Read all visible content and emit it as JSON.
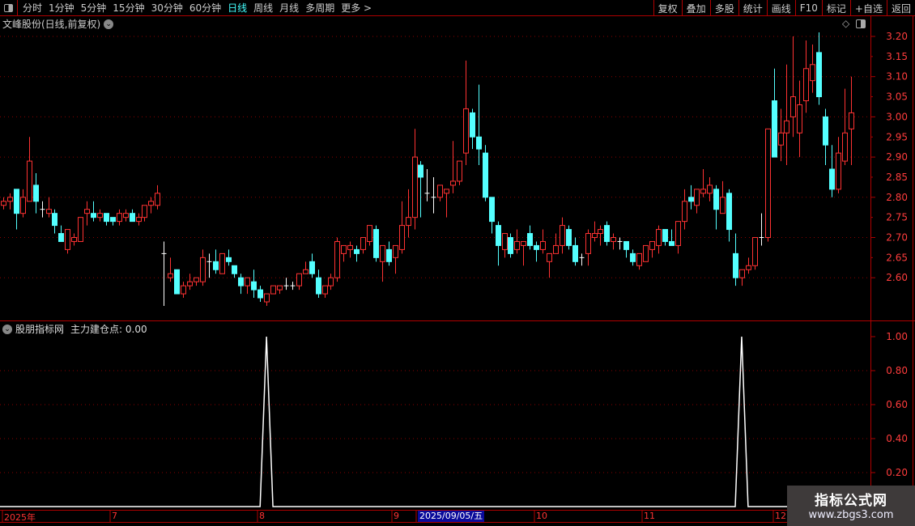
{
  "toolbar": {
    "periods": [
      "分时",
      "1分钟",
      "5分钟",
      "15分钟",
      "30分钟",
      "60分钟",
      "日线",
      "周线",
      "月线",
      "多周期",
      "更多 >"
    ],
    "active_period": "日线",
    "right": [
      "复权",
      "叠加",
      "多股",
      "统计",
      "画线",
      "F10",
      "标记",
      "+自选",
      "返回"
    ]
  },
  "chart_title": "文峰股份(日线,前复权)",
  "indicator": {
    "name": "股朋指标网",
    "label": "主力建仓点: 0.00"
  },
  "price_axis": {
    "ticks": [
      "3.20",
      "3.15",
      "3.10",
      "3.05",
      "3.00",
      "2.95",
      "2.90",
      "2.85",
      "2.80",
      "2.75",
      "2.70",
      "2.65",
      "2.60"
    ],
    "min": 2.6,
    "max": 3.2
  },
  "indicator_axis": {
    "ticks": [
      "1.00",
      "0.80",
      "0.60",
      "0.40",
      "0.20"
    ],
    "min": 0,
    "max": 1
  },
  "date_axis": {
    "labels": [
      "2025年",
      "7",
      "8",
      "9",
      "10",
      "11",
      "12"
    ],
    "highlight": "2025/09/05/五"
  },
  "watermark": {
    "title": "指标公式网",
    "url": "www.zbgs3.com"
  },
  "colors": {
    "up": "#ff3232",
    "down": "#54ffff",
    "flat": "#ffffff",
    "axis": "#b00000",
    "axis_text": "#ff3c3c",
    "grid": "#8b0000"
  },
  "chart_data": {
    "type": "candlestick",
    "ohlc": [
      [
        2.78,
        2.8,
        2.77,
        2.79
      ],
      [
        2.79,
        2.81,
        2.77,
        2.8
      ],
      [
        2.82,
        2.82,
        2.72,
        2.76
      ],
      [
        2.76,
        2.82,
        2.75,
        2.8
      ],
      [
        2.79,
        2.95,
        2.79,
        2.89
      ],
      [
        2.83,
        2.86,
        2.76,
        2.79
      ],
      [
        2.77,
        2.79,
        2.75,
        2.77
      ],
      [
        2.76,
        2.8,
        2.75,
        2.77
      ],
      [
        2.76,
        2.77,
        2.71,
        2.73
      ],
      [
        2.71,
        2.73,
        2.69,
        2.69
      ],
      [
        2.67,
        2.72,
        2.66,
        2.72
      ],
      [
        2.69,
        2.71,
        2.68,
        2.7
      ],
      [
        2.69,
        2.75,
        2.69,
        2.75
      ],
      [
        2.76,
        2.79,
        2.73,
        2.77
      ],
      [
        2.76,
        2.79,
        2.74,
        2.75
      ],
      [
        2.75,
        2.77,
        2.74,
        2.76
      ],
      [
        2.76,
        2.76,
        2.73,
        2.74
      ],
      [
        2.75,
        2.75,
        2.73,
        2.74
      ],
      [
        2.74,
        2.77,
        2.73,
        2.76
      ],
      [
        2.75,
        2.77,
        2.74,
        2.76
      ],
      [
        2.76,
        2.77,
        2.74,
        2.74
      ],
      [
        2.74,
        2.76,
        2.73,
        2.75
      ],
      [
        2.75,
        2.78,
        2.74,
        2.78
      ],
      [
        2.78,
        2.8,
        2.76,
        2.79
      ],
      [
        2.78,
        2.83,
        2.77,
        2.81
      ],
      [
        2.66,
        2.69,
        2.53,
        2.66
      ],
      [
        2.6,
        2.65,
        2.59,
        2.61
      ],
      [
        2.62,
        2.62,
        2.56,
        2.56
      ],
      [
        2.56,
        2.59,
        2.55,
        2.58
      ],
      [
        2.58,
        2.61,
        2.57,
        2.59
      ],
      [
        2.59,
        2.6,
        2.58,
        2.6
      ],
      [
        2.59,
        2.67,
        2.58,
        2.65
      ],
      [
        2.64,
        2.66,
        2.6,
        2.64
      ],
      [
        2.64,
        2.67,
        2.61,
        2.62
      ],
      [
        2.61,
        2.66,
        2.61,
        2.66
      ],
      [
        2.65,
        2.67,
        2.63,
        2.64
      ],
      [
        2.63,
        2.63,
        2.6,
        2.61
      ],
      [
        2.6,
        2.61,
        2.56,
        2.58
      ],
      [
        2.58,
        2.6,
        2.56,
        2.6
      ],
      [
        2.59,
        2.62,
        2.55,
        2.57
      ],
      [
        2.57,
        2.58,
        2.54,
        2.55
      ],
      [
        2.54,
        2.56,
        2.53,
        2.56
      ],
      [
        2.56,
        2.58,
        2.56,
        2.58
      ],
      [
        2.57,
        2.58,
        2.56,
        2.58
      ],
      [
        2.58,
        2.6,
        2.57,
        2.58
      ],
      [
        2.58,
        2.59,
        2.57,
        2.58
      ],
      [
        2.58,
        2.61,
        2.57,
        2.61
      ],
      [
        2.61,
        2.64,
        2.61,
        2.62
      ],
      [
        2.64,
        2.66,
        2.6,
        2.61
      ],
      [
        2.6,
        2.62,
        2.55,
        2.56
      ],
      [
        2.56,
        2.58,
        2.55,
        2.58
      ],
      [
        2.58,
        2.61,
        2.57,
        2.6
      ],
      [
        2.6,
        2.7,
        2.59,
        2.69
      ],
      [
        2.66,
        2.68,
        2.64,
        2.68
      ],
      [
        2.67,
        2.69,
        2.65,
        2.68
      ],
      [
        2.67,
        2.68,
        2.64,
        2.66
      ],
      [
        2.67,
        2.7,
        2.66,
        2.7
      ],
      [
        2.69,
        2.73,
        2.68,
        2.73
      ],
      [
        2.72,
        2.73,
        2.64,
        2.65
      ],
      [
        2.64,
        2.68,
        2.59,
        2.68
      ],
      [
        2.67,
        2.69,
        2.63,
        2.64
      ],
      [
        2.65,
        2.68,
        2.61,
        2.68
      ],
      [
        2.67,
        2.79,
        2.66,
        2.73
      ],
      [
        2.73,
        2.82,
        2.7,
        2.75
      ],
      [
        2.75,
        2.97,
        2.72,
        2.9
      ],
      [
        2.88,
        2.89,
        2.75,
        2.85
      ],
      [
        2.81,
        2.87,
        2.79,
        2.81
      ],
      [
        2.8,
        2.85,
        2.76,
        2.8
      ],
      [
        2.8,
        2.83,
        2.79,
        2.83
      ],
      [
        2.81,
        2.82,
        2.75,
        2.82
      ],
      [
        2.83,
        2.94,
        2.81,
        2.84
      ],
      [
        2.84,
        2.89,
        2.83,
        2.89
      ],
      [
        2.91,
        3.14,
        2.88,
        3.02
      ],
      [
        3.01,
        3.02,
        2.92,
        2.95
      ],
      [
        2.95,
        3.08,
        2.88,
        2.92
      ],
      [
        2.91,
        2.93,
        2.79,
        2.8
      ],
      [
        2.8,
        2.8,
        2.71,
        2.74
      ],
      [
        2.73,
        2.74,
        2.63,
        2.68
      ],
      [
        2.67,
        2.71,
        2.65,
        2.71
      ],
      [
        2.7,
        2.71,
        2.65,
        2.66
      ],
      [
        2.67,
        2.72,
        2.66,
        2.69
      ],
      [
        2.68,
        2.69,
        2.63,
        2.69
      ],
      [
        2.71,
        2.73,
        2.67,
        2.68
      ],
      [
        2.68,
        2.69,
        2.64,
        2.67
      ],
      [
        2.67,
        2.72,
        2.66,
        2.69
      ],
      [
        2.64,
        2.66,
        2.6,
        2.66
      ],
      [
        2.66,
        2.71,
        2.66,
        2.68
      ],
      [
        2.68,
        2.75,
        2.66,
        2.73
      ],
      [
        2.72,
        2.73,
        2.67,
        2.68
      ],
      [
        2.68,
        2.7,
        2.63,
        2.64
      ],
      [
        2.65,
        2.66,
        2.63,
        2.65
      ],
      [
        2.66,
        2.72,
        2.63,
        2.71
      ],
      [
        2.7,
        2.74,
        2.69,
        2.71
      ],
      [
        2.71,
        2.73,
        2.68,
        2.72
      ],
      [
        2.73,
        2.74,
        2.68,
        2.69
      ],
      [
        2.69,
        2.71,
        2.67,
        2.7
      ],
      [
        2.69,
        2.7,
        2.67,
        2.69
      ],
      [
        2.69,
        2.69,
        2.65,
        2.67
      ],
      [
        2.66,
        2.67,
        2.63,
        2.64
      ],
      [
        2.63,
        2.66,
        2.62,
        2.66
      ],
      [
        2.64,
        2.68,
        2.64,
        2.68
      ],
      [
        2.67,
        2.69,
        2.65,
        2.69
      ],
      [
        2.68,
        2.73,
        2.66,
        2.72
      ],
      [
        2.72,
        2.72,
        2.68,
        2.69
      ],
      [
        2.69,
        2.72,
        2.68,
        2.68
      ],
      [
        2.68,
        2.74,
        2.66,
        2.74
      ],
      [
        2.74,
        2.82,
        2.72,
        2.79
      ],
      [
        2.8,
        2.83,
        2.77,
        2.79
      ],
      [
        2.78,
        2.82,
        2.76,
        2.82
      ],
      [
        2.81,
        2.87,
        2.8,
        2.82
      ],
      [
        2.81,
        2.85,
        2.79,
        2.83
      ],
      [
        2.82,
        2.83,
        2.72,
        2.77
      ],
      [
        2.76,
        2.84,
        2.76,
        2.8
      ],
      [
        2.81,
        2.82,
        2.69,
        2.72
      ],
      [
        2.66,
        2.71,
        2.58,
        2.6
      ],
      [
        2.6,
        2.62,
        2.58,
        2.62
      ],
      [
        2.62,
        2.65,
        2.61,
        2.63
      ],
      [
        2.63,
        2.7,
        2.62,
        2.7
      ],
      [
        2.7,
        2.76,
        2.68,
        2.7
      ],
      [
        2.7,
        2.97,
        2.69,
        2.97
      ],
      [
        3.04,
        3.12,
        2.9,
        2.9
      ],
      [
        2.93,
        3.02,
        2.89,
        2.96
      ],
      [
        2.96,
        3.13,
        2.88,
        2.99
      ],
      [
        3.0,
        3.2,
        2.95,
        3.05
      ],
      [
        2.96,
        3.09,
        2.9,
        3.03
      ],
      [
        3.04,
        3.19,
        3.01,
        3.12
      ],
      [
        3.09,
        3.18,
        3.06,
        3.13
      ],
      [
        3.16,
        3.21,
        3.03,
        3.05
      ],
      [
        3.0,
        3.02,
        2.88,
        2.93
      ],
      [
        2.87,
        2.93,
        2.8,
        2.82
      ],
      [
        2.82,
        2.95,
        2.81,
        2.91
      ],
      [
        2.89,
        3.07,
        2.88,
        2.96
      ],
      [
        2.97,
        3.1,
        2.88,
        3.01
      ]
    ],
    "indicator_signal_days": [
      41,
      115
    ]
  }
}
